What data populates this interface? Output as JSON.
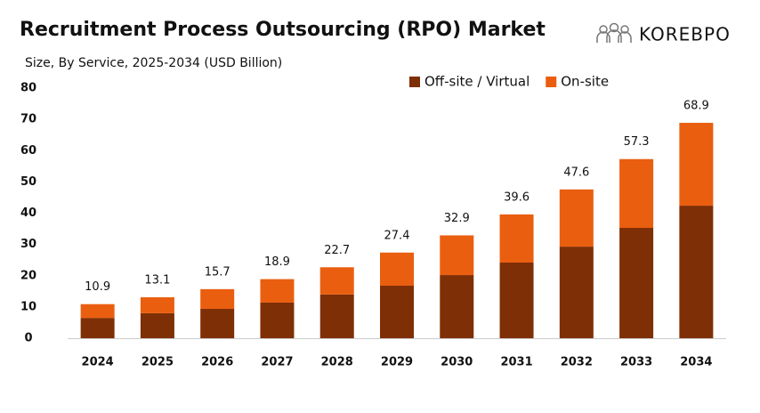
{
  "chart_data": {
    "type": "stacked-bar",
    "title": "Recruitment Process Outsourcing (RPO) Market",
    "subtitle": "Size, By Service, 2025-2034 (USD Billion)",
    "logo": "KOREBPO",
    "categories": [
      "2024",
      "2025",
      "2026",
      "2027",
      "2028",
      "2029",
      "2030",
      "2031",
      "2032",
      "2033",
      "2034"
    ],
    "series": [
      {
        "name": "Off-site / Virtual",
        "color": "#7f2f05",
        "values": [
          6.5,
          8.0,
          9.4,
          11.4,
          14.0,
          16.8,
          20.2,
          24.2,
          29.3,
          35.3,
          42.4
        ]
      },
      {
        "name": "On-site",
        "color": "#ea5e0f",
        "values": [
          4.4,
          5.1,
          6.3,
          7.5,
          8.7,
          10.6,
          12.7,
          15.4,
          18.3,
          22.0,
          26.5
        ]
      }
    ],
    "totals": [
      10.9,
      13.1,
      15.7,
      18.9,
      22.7,
      27.4,
      32.9,
      39.6,
      47.6,
      57.3,
      68.9
    ],
    "ylim": [
      0,
      80
    ],
    "yticks": [
      0,
      10,
      20,
      30,
      40,
      50,
      60,
      70,
      80
    ],
    "grid": false
  }
}
